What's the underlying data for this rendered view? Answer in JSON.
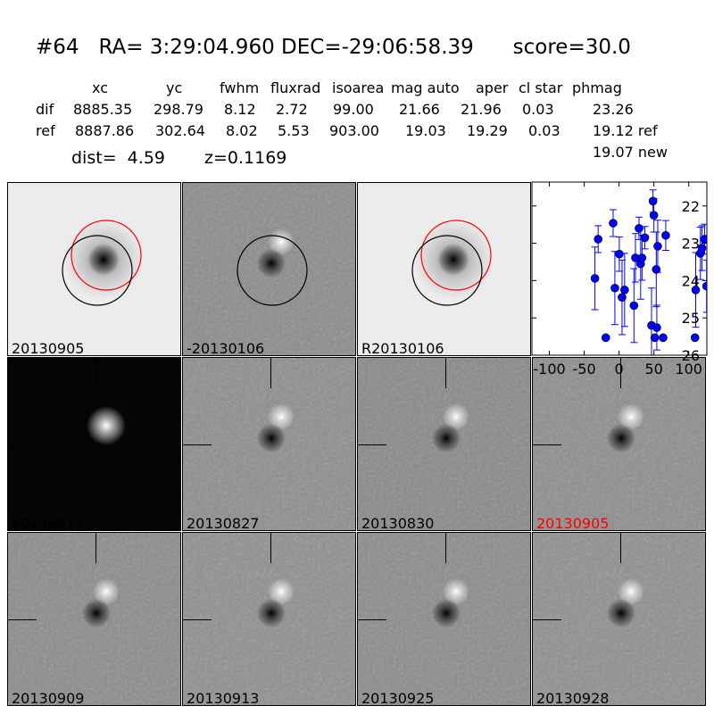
{
  "header": {
    "title": "#64   RA= 3:29:04.960 DEC=-29:06:58.39      score=30.0",
    "columns": [
      "xc",
      "yc",
      "fwhm",
      "fluxrad",
      "isoarea",
      "mag auto",
      "aper",
      "cl star",
      "phmag"
    ],
    "rows": [
      {
        "label": "dif",
        "values": [
          "8885.35",
          "298.79",
          "8.12",
          "2.72",
          "99.00",
          "21.66",
          "21.96",
          "0.03",
          "23.26"
        ]
      },
      {
        "label": "ref",
        "values": [
          "8887.86",
          "302.64",
          "8.02",
          "5.53",
          "903.00",
          "19.03",
          "19.29",
          "0.03",
          "19.12 ref"
        ]
      }
    ],
    "phmag_new": "19.07 new",
    "dist": "dist=  4.59",
    "z": "z=0.1169"
  },
  "stamps": [
    {
      "label": "20130905",
      "type": "image",
      "bg": "#ececec",
      "blobs": [
        {
          "dark": true,
          "r": 22,
          "strength": 1
        }
      ],
      "circles": [
        "#ff0000",
        "#000000"
      ]
    },
    {
      "label": "-20130106",
      "type": "diff",
      "bg": "#8a8a8a",
      "circles": [
        "#000000"
      ]
    },
    {
      "label": "R20130106",
      "type": "image",
      "bg": "#ececec",
      "blobs": [
        {
          "dark": true,
          "r": 22,
          "strength": 1
        }
      ],
      "circles": [
        "#ff0000",
        "#000000"
      ]
    },
    {
      "label": "",
      "type": "plot"
    },
    {
      "label": "20130817",
      "type": "star",
      "bg": "#050505",
      "crosshair": true
    },
    {
      "label": "20130827",
      "type": "diff",
      "bg": "#8c8c8c",
      "crosshair": true
    },
    {
      "label": "20130830",
      "type": "diff",
      "bg": "#888888",
      "crosshair": true
    },
    {
      "label": "20130905",
      "type": "diff",
      "bg": "#8c8c8c",
      "crosshair": true,
      "label_color": "#ff0000"
    },
    {
      "label": "20130909",
      "type": "diff",
      "bg": "#8a8a8a",
      "crosshair": true
    },
    {
      "label": "20130913",
      "type": "diff",
      "bg": "#8e8e8e",
      "crosshair": true
    },
    {
      "label": "20130925",
      "type": "diff",
      "bg": "#8a8a8a",
      "crosshair": true
    },
    {
      "label": "20130928",
      "type": "diff",
      "bg": "#8e8e8e",
      "crosshair": true
    }
  ],
  "chart_data": {
    "type": "scatter",
    "xlim": [
      -125,
      126
    ],
    "ylim": [
      26,
      21.36
    ],
    "y_inverted": true,
    "xticks": [
      -100,
      -50,
      0,
      50,
      100
    ],
    "yticks": [
      22,
      23,
      24,
      25,
      26
    ],
    "marker_color": "#0000ff",
    "grid": false,
    "points": [
      {
        "x": -34.6,
        "y": 23.94,
        "err": 0.84
      },
      {
        "x": -30,
        "y": 22.89,
        "err": 0.36
      },
      {
        "x": -19,
        "y": 25.53,
        "err": 0.05
      },
      {
        "x": -8.5,
        "y": 22.46,
        "err": 0.36
      },
      {
        "x": -6,
        "y": 24.2,
        "err": 0.98
      },
      {
        "x": 0.4,
        "y": 23.29,
        "err": 0.46
      },
      {
        "x": 4.3,
        "y": 24.45,
        "err": 1.0
      },
      {
        "x": 8,
        "y": 24.25,
        "err": 0.98
      },
      {
        "x": 21.4,
        "y": 24.67,
        "err": 0.99
      },
      {
        "x": 23.5,
        "y": 23.39,
        "err": 0.65
      },
      {
        "x": 28.6,
        "y": 22.6,
        "err": 0.3
      },
      {
        "x": 31,
        "y": 23.55,
        "err": 0.95
      },
      {
        "x": 33,
        "y": 23.39,
        "err": 0.6
      },
      {
        "x": 37,
        "y": 22.85,
        "err": 0.3
      },
      {
        "x": 46.6,
        "y": 25.2,
        "err": 1.0
      },
      {
        "x": 48.7,
        "y": 21.87,
        "err": 0.3
      },
      {
        "x": 50,
        "y": 22.25,
        "err": 0.45
      },
      {
        "x": 51.3,
        "y": 25.53,
        "err": 0.05
      },
      {
        "x": 53.4,
        "y": 23.7,
        "err": 1.0
      },
      {
        "x": 54.2,
        "y": 25.26,
        "err": 0.6
      },
      {
        "x": 55.5,
        "y": 23.08,
        "err": 0.7
      },
      {
        "x": 63.2,
        "y": 25.53,
        "err": 0.05
      },
      {
        "x": 67,
        "y": 22.79,
        "err": 0.4
      },
      {
        "x": 109,
        "y": 25.53,
        "err": 0.05
      },
      {
        "x": 110,
        "y": 24.25,
        "err": 1.0
      },
      {
        "x": 116.7,
        "y": 23.27,
        "err": 0.7
      },
      {
        "x": 119,
        "y": 23.13,
        "err": 0.6
      },
      {
        "x": 122.7,
        "y": 22.89,
        "err": 0.4
      },
      {
        "x": 125.6,
        "y": 24.15,
        "err": 0.7
      }
    ]
  }
}
